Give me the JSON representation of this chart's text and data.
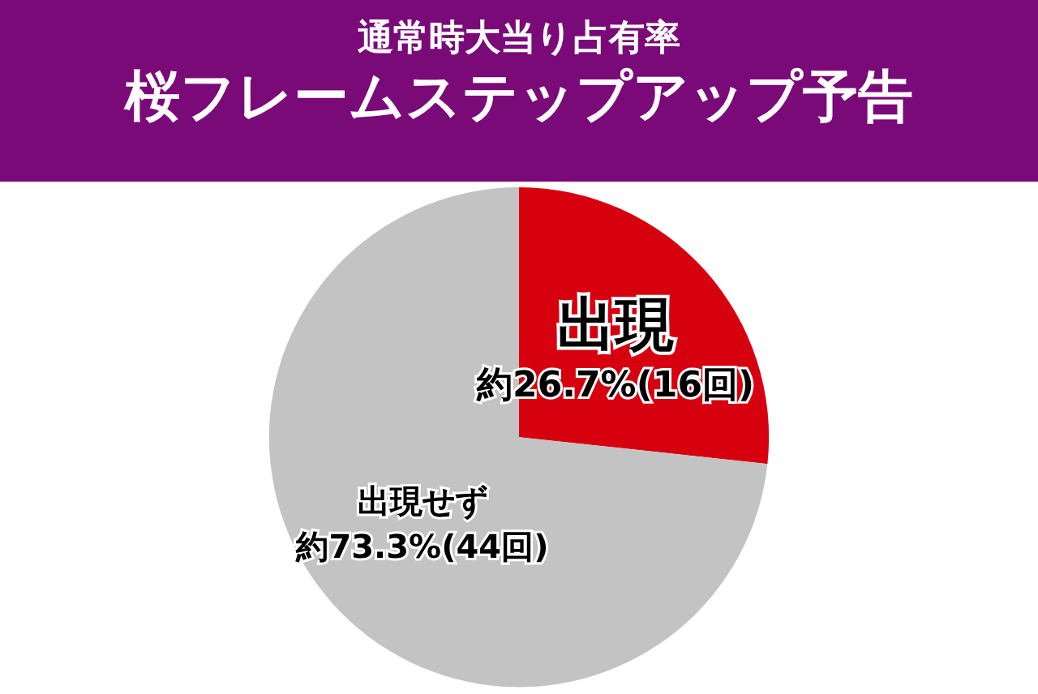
{
  "chart_data": {
    "type": "pie",
    "title": "通常時大当り占有率",
    "subtitle": "桜フレームステップアップ予告",
    "categories": [
      "出現",
      "出現せず"
    ],
    "values": [
      26.7,
      73.3
    ],
    "colors": [
      "#d7000f",
      "#c3c3c3"
    ],
    "value_labels": [
      "約26.7%(16回)",
      "約73.3%(44回)"
    ]
  }
}
